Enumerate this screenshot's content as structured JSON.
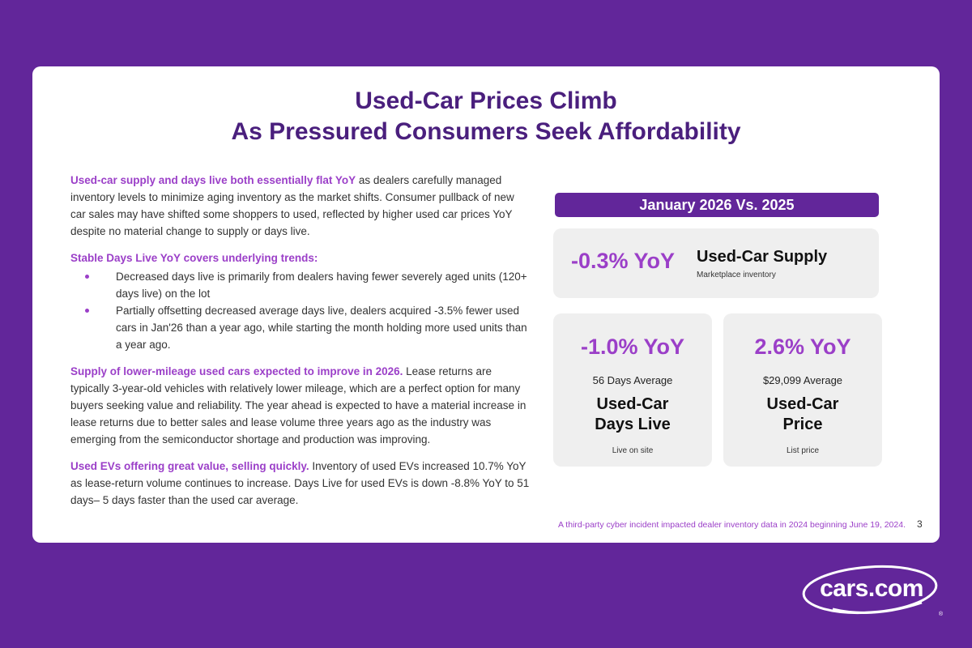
{
  "title": {
    "line1": "Used-Car Prices Climb",
    "line2": "As Pressured Consumers Seek Affordability"
  },
  "body": {
    "p1_hl": "Used-car supply and days live both essentially flat YoY",
    "p1_text": " as dealers carefully managed inventory levels to minimize aging inventory as the market shifts. Consumer pullback of new car sales may have shifted some shoppers to used, reflected by higher used car prices YoY despite no material change to supply or days live.",
    "p2_hl": "Stable Days Live YoY covers underlying trends:",
    "bullets": [
      "Decreased days live is primarily from dealers having fewer severely aged units (120+ days live) on the lot",
      "Partially offsetting decreased average days live, dealers acquired -3.5% fewer used cars in Jan'26 than a year ago, while starting the month holding more used units than a year ago."
    ],
    "p3_hl": "Supply of lower-mileage used cars expected to improve in 2026.",
    "p3_text": " Lease returns are typically 3-year-old vehicles with relatively lower mileage, which are a perfect option for many buyers seeking value and reliability. The year ahead is expected to have a material increase in lease returns due to better sales and lease volume three years ago as the industry was emerging from the semiconductor shortage and production was improving.",
    "p4_hl": "Used EVs offering great value, selling quickly.",
    "p4_text": " Inventory of used EVs increased 10.7% YoY as lease-return volume continues to increase. Days Live for used EVs is down -8.8% YoY to 51 days– 5 days faster than the used car average."
  },
  "banner": "January 2026 Vs. 2025",
  "supply": {
    "value": "-0.3% YoY",
    "label": "Used-Car Supply",
    "sub": "Marketplace inventory"
  },
  "days": {
    "value": "-1.0% YoY",
    "avg": "56 Days Average",
    "label1": "Used-Car",
    "label2": "Days Live",
    "sub": "Live on site"
  },
  "price": {
    "value": "2.6% YoY",
    "avg": "$29,099 Average",
    "label1": "Used-Car",
    "label2": "Price",
    "sub": "List price"
  },
  "footnote": "A third-party cyber incident impacted dealer inventory data in 2024 beginning June 19, 2024.",
  "page_number": "3",
  "logo": {
    "text": "cars.com",
    "reg": "®"
  }
}
